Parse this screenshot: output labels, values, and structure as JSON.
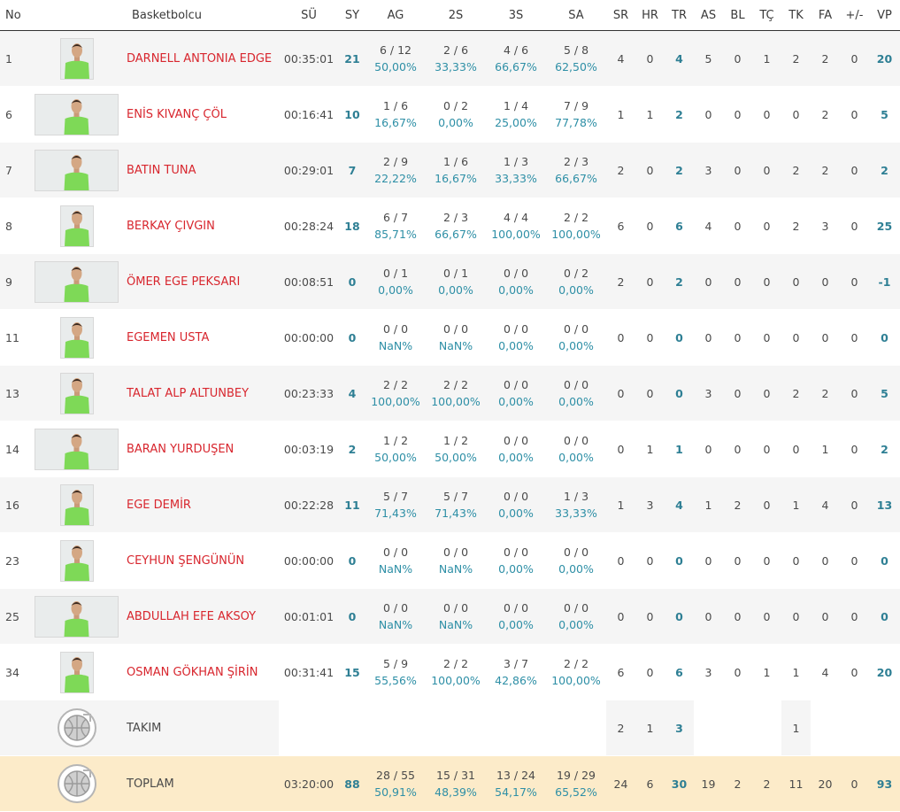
{
  "headers": {
    "no": "No",
    "player": "Basketbolcu",
    "su": "SÜ",
    "sy": "SY",
    "ag": "AG",
    "s2": "2S",
    "s3": "3S",
    "sa": "SA",
    "sr": "SR",
    "hr": "HR",
    "tr": "TR",
    "as": "AS",
    "bl": "BL",
    "tc": "TÇ",
    "tk": "TK",
    "fa": "FA",
    "pm": "+/-",
    "vp": "VP"
  },
  "players": [
    {
      "no": "1",
      "name": "DARNELL ANTONIA EDGE",
      "su": "00:35:01",
      "sy": "21",
      "ag": "6 / 12",
      "ag_pct": "50,00%",
      "s2": "2 / 6",
      "s2_pct": "33,33%",
      "s3": "4 / 6",
      "s3_pct": "66,67%",
      "sa": "5 / 8",
      "sa_pct": "62,50%",
      "sr": "4",
      "hr": "0",
      "tr": "4",
      "as": "5",
      "bl": "0",
      "tc": "1",
      "tk": "2",
      "fa": "2",
      "pm": "0",
      "vp": "20"
    },
    {
      "no": "6",
      "name": "ENİS KIVANÇ ÇÖL",
      "su": "00:16:41",
      "sy": "10",
      "ag": "1 / 6",
      "ag_pct": "16,67%",
      "s2": "0 / 2",
      "s2_pct": "0,00%",
      "s3": "1 / 4",
      "s3_pct": "25,00%",
      "sa": "7 / 9",
      "sa_pct": "77,78%",
      "sr": "1",
      "hr": "1",
      "tr": "2",
      "as": "0",
      "bl": "0",
      "tc": "0",
      "tk": "0",
      "fa": "2",
      "pm": "0",
      "vp": "5"
    },
    {
      "no": "7",
      "name": "BATIN TUNA",
      "su": "00:29:01",
      "sy": "7",
      "ag": "2 / 9",
      "ag_pct": "22,22%",
      "s2": "1 / 6",
      "s2_pct": "16,67%",
      "s3": "1 / 3",
      "s3_pct": "33,33%",
      "sa": "2 / 3",
      "sa_pct": "66,67%",
      "sr": "2",
      "hr": "0",
      "tr": "2",
      "as": "3",
      "bl": "0",
      "tc": "0",
      "tk": "2",
      "fa": "2",
      "pm": "0",
      "vp": "2"
    },
    {
      "no": "8",
      "name": "BERKAY ÇIVGIN",
      "su": "00:28:24",
      "sy": "18",
      "ag": "6 / 7",
      "ag_pct": "85,71%",
      "s2": "2 / 3",
      "s2_pct": "66,67%",
      "s3": "4 / 4",
      "s3_pct": "100,00%",
      "sa": "2 / 2",
      "sa_pct": "100,00%",
      "sr": "6",
      "hr": "0",
      "tr": "6",
      "as": "4",
      "bl": "0",
      "tc": "0",
      "tk": "2",
      "fa": "3",
      "pm": "0",
      "vp": "25"
    },
    {
      "no": "9",
      "name": "ÖMER EGE PEKSARI",
      "su": "00:08:51",
      "sy": "0",
      "ag": "0 / 1",
      "ag_pct": "0,00%",
      "s2": "0 / 1",
      "s2_pct": "0,00%",
      "s3": "0 / 0",
      "s3_pct": "0,00%",
      "sa": "0 / 2",
      "sa_pct": "0,00%",
      "sr": "2",
      "hr": "0",
      "tr": "2",
      "as": "0",
      "bl": "0",
      "tc": "0",
      "tk": "0",
      "fa": "0",
      "pm": "0",
      "vp": "-1"
    },
    {
      "no": "11",
      "name": "EGEMEN USTA",
      "su": "00:00:00",
      "sy": "0",
      "ag": "0 / 0",
      "ag_pct": "NaN%",
      "s2": "0 / 0",
      "s2_pct": "NaN%",
      "s3": "0 / 0",
      "s3_pct": "0,00%",
      "sa": "0 / 0",
      "sa_pct": "0,00%",
      "sr": "0",
      "hr": "0",
      "tr": "0",
      "as": "0",
      "bl": "0",
      "tc": "0",
      "tk": "0",
      "fa": "0",
      "pm": "0",
      "vp": "0"
    },
    {
      "no": "13",
      "name": "TALAT ALP ALTUNBEY",
      "su": "00:23:33",
      "sy": "4",
      "ag": "2 / 2",
      "ag_pct": "100,00%",
      "s2": "2 / 2",
      "s2_pct": "100,00%",
      "s3": "0 / 0",
      "s3_pct": "0,00%",
      "sa": "0 / 0",
      "sa_pct": "0,00%",
      "sr": "0",
      "hr": "0",
      "tr": "0",
      "as": "3",
      "bl": "0",
      "tc": "0",
      "tk": "2",
      "fa": "2",
      "pm": "0",
      "vp": "5"
    },
    {
      "no": "14",
      "name": "BARAN YURDUŞEN",
      "su": "00:03:19",
      "sy": "2",
      "ag": "1 / 2",
      "ag_pct": "50,00%",
      "s2": "1 / 2",
      "s2_pct": "50,00%",
      "s3": "0 / 0",
      "s3_pct": "0,00%",
      "sa": "0 / 0",
      "sa_pct": "0,00%",
      "sr": "0",
      "hr": "1",
      "tr": "1",
      "as": "0",
      "bl": "0",
      "tc": "0",
      "tk": "0",
      "fa": "1",
      "pm": "0",
      "vp": "2"
    },
    {
      "no": "16",
      "name": "EGE DEMİR",
      "su": "00:22:28",
      "sy": "11",
      "ag": "5 / 7",
      "ag_pct": "71,43%",
      "s2": "5 / 7",
      "s2_pct": "71,43%",
      "s3": "0 / 0",
      "s3_pct": "0,00%",
      "sa": "1 / 3",
      "sa_pct": "33,33%",
      "sr": "1",
      "hr": "3",
      "tr": "4",
      "as": "1",
      "bl": "2",
      "tc": "0",
      "tk": "1",
      "fa": "4",
      "pm": "0",
      "vp": "13"
    },
    {
      "no": "23",
      "name": "CEYHUN ŞENGÜNÜN",
      "su": "00:00:00",
      "sy": "0",
      "ag": "0 / 0",
      "ag_pct": "NaN%",
      "s2": "0 / 0",
      "s2_pct": "NaN%",
      "s3": "0 / 0",
      "s3_pct": "0,00%",
      "sa": "0 / 0",
      "sa_pct": "0,00%",
      "sr": "0",
      "hr": "0",
      "tr": "0",
      "as": "0",
      "bl": "0",
      "tc": "0",
      "tk": "0",
      "fa": "0",
      "pm": "0",
      "vp": "0"
    },
    {
      "no": "25",
      "name": "ABDULLAH EFE AKSOY",
      "su": "00:01:01",
      "sy": "0",
      "ag": "0 / 0",
      "ag_pct": "NaN%",
      "s2": "0 / 0",
      "s2_pct": "NaN%",
      "s3": "0 / 0",
      "s3_pct": "0,00%",
      "sa": "0 / 0",
      "sa_pct": "0,00%",
      "sr": "0",
      "hr": "0",
      "tr": "0",
      "as": "0",
      "bl": "0",
      "tc": "0",
      "tk": "0",
      "fa": "0",
      "pm": "0",
      "vp": "0"
    },
    {
      "no": "34",
      "name": "OSMAN GÖKHAN ŞİRİN",
      "su": "00:31:41",
      "sy": "15",
      "ag": "5 / 9",
      "ag_pct": "55,56%",
      "s2": "2 / 2",
      "s2_pct": "100,00%",
      "s3": "3 / 7",
      "s3_pct": "42,86%",
      "sa": "2 / 2",
      "sa_pct": "100,00%",
      "sr": "6",
      "hr": "0",
      "tr": "6",
      "as": "3",
      "bl": "0",
      "tc": "1",
      "tk": "1",
      "fa": "4",
      "pm": "0",
      "vp": "20"
    }
  ],
  "team": {
    "label": "TAKIM",
    "sr": "2",
    "hr": "1",
    "tr": "3",
    "tk": "1"
  },
  "total": {
    "label": "TOPLAM",
    "su": "03:20:00",
    "sy": "88",
    "ag": "28 / 55",
    "ag_pct": "50,91%",
    "s2": "15 / 31",
    "s2_pct": "48,39%",
    "s3": "13 / 24",
    "s3_pct": "54,17%",
    "sa": "19 / 29",
    "sa_pct": "65,52%",
    "sr": "24",
    "hr": "6",
    "tr": "30",
    "as": "19",
    "bl": "2",
    "tc": "2",
    "tk": "11",
    "fa": "20",
    "pm": "0",
    "vp": "93"
  },
  "photo_styles": [
    "portrait",
    "wide",
    "wide",
    "portrait",
    "wide",
    "portrait",
    "portrait",
    "wide",
    "portrait",
    "portrait",
    "wide",
    "portrait"
  ],
  "colors": {
    "accent_red": "#d8262e",
    "teal": "#2e7f94",
    "jersey": "#7ed957",
    "total_bg": "#fcebc9"
  }
}
